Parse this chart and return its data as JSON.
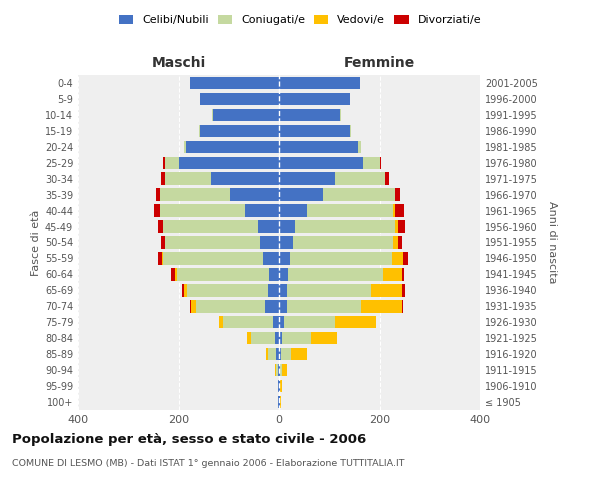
{
  "age_groups": [
    "100+",
    "95-99",
    "90-94",
    "85-89",
    "80-84",
    "75-79",
    "70-74",
    "65-69",
    "60-64",
    "55-59",
    "50-54",
    "45-49",
    "40-44",
    "35-39",
    "30-34",
    "25-29",
    "20-24",
    "15-19",
    "10-14",
    "5-9",
    "0-4"
  ],
  "birth_years": [
    "≤ 1905",
    "1906-1910",
    "1911-1915",
    "1916-1920",
    "1921-1925",
    "1926-1930",
    "1931-1935",
    "1936-1940",
    "1941-1945",
    "1946-1950",
    "1951-1955",
    "1956-1960",
    "1961-1965",
    "1966-1970",
    "1971-1975",
    "1976-1980",
    "1981-1985",
    "1986-1990",
    "1991-1995",
    "1996-2000",
    "2001-2005"
  ],
  "maschi_celibi": [
    1,
    1,
    2,
    5,
    7,
    12,
    28,
    22,
    20,
    32,
    38,
    42,
    68,
    98,
    135,
    200,
    185,
    158,
    132,
    158,
    178
  ],
  "maschi_coniugati": [
    0,
    1,
    3,
    16,
    48,
    100,
    138,
    162,
    182,
    198,
    188,
    188,
    168,
    138,
    92,
    26,
    5,
    2,
    1,
    0,
    0
  ],
  "maschi_vedovi": [
    0,
    0,
    2,
    5,
    8,
    8,
    10,
    5,
    5,
    2,
    1,
    1,
    0,
    0,
    0,
    0,
    0,
    0,
    0,
    0,
    0
  ],
  "maschi_divorziati": [
    0,
    0,
    0,
    0,
    0,
    0,
    2,
    5,
    8,
    8,
    8,
    10,
    12,
    8,
    8,
    5,
    0,
    0,
    0,
    0,
    0
  ],
  "femmine_nubili": [
    1,
    1,
    1,
    3,
    5,
    10,
    15,
    15,
    18,
    22,
    28,
    32,
    55,
    88,
    112,
    168,
    158,
    142,
    122,
    142,
    162
  ],
  "femmine_coniugate": [
    0,
    1,
    5,
    20,
    58,
    102,
    148,
    168,
    188,
    202,
    198,
    198,
    172,
    142,
    98,
    32,
    6,
    2,
    1,
    0,
    0
  ],
  "femmine_vedove": [
    2,
    4,
    10,
    32,
    52,
    82,
    82,
    62,
    38,
    22,
    10,
    6,
    3,
    1,
    0,
    0,
    0,
    0,
    0,
    0,
    0
  ],
  "femmine_divorziate": [
    0,
    0,
    0,
    0,
    0,
    0,
    2,
    5,
    5,
    10,
    8,
    15,
    18,
    10,
    8,
    3,
    0,
    0,
    0,
    0,
    0
  ],
  "col_celibi": "#4472c4",
  "col_coniug": "#c5d9a0",
  "col_vedovi": "#ffc000",
  "col_divorz": "#cc0000",
  "title": "Popolazione per età, sesso e stato civile - 2006",
  "subtitle": "COMUNE DI LESMO (MB) - Dati ISTAT 1° gennaio 2006 - Elaborazione TUTTITALIA.IT",
  "label_maschi": "Maschi",
  "label_femmine": "Femmine",
  "ylabel_left": "Fasce di età",
  "ylabel_right": "Anni di nascita",
  "xlim": 400,
  "bg_color": "#ffffff",
  "plot_bg_color": "#efefef",
  "legend_labels": [
    "Celibi/Nubili",
    "Coniugati/e",
    "Vedovi/e",
    "Divorziati/e"
  ]
}
